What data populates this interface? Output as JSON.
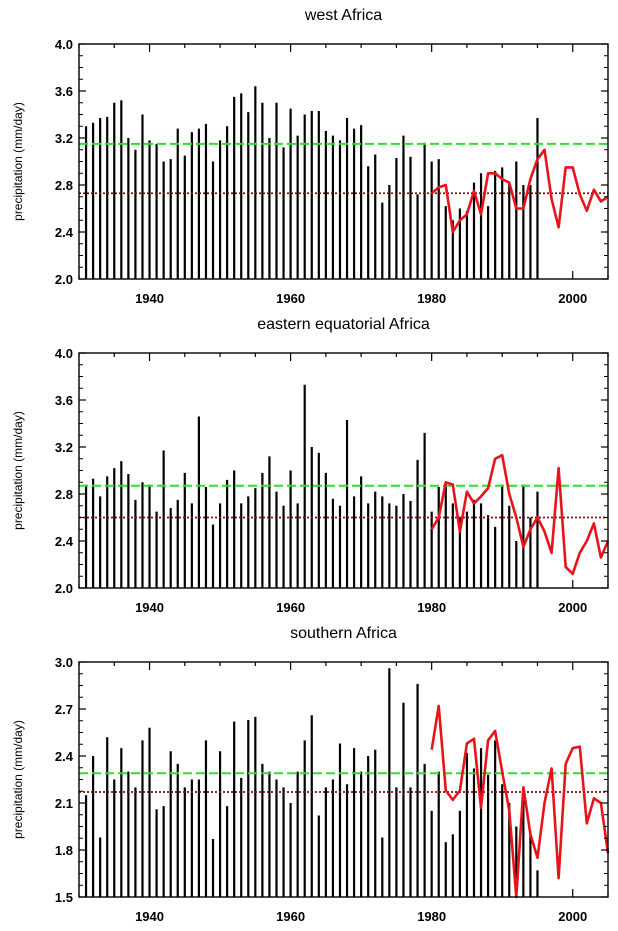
{
  "chart_data": [
    {
      "type": "bar",
      "title": "west Africa",
      "xlabel": "",
      "ylabel": "precipitation (mm/day)",
      "xlim": [
        1930,
        2005
      ],
      "ylim": [
        2.0,
        4.0
      ],
      "yticks": [
        2.0,
        2.4,
        2.8,
        3.2,
        3.6,
        4.0
      ],
      "ytick_labels": [
        "2.0",
        "2.4",
        "2.8",
        "3.2",
        "3.6",
        "4.0"
      ],
      "xticks": [
        1940,
        1960,
        1980,
        2000
      ],
      "xtick_labels": [
        "1940",
        "1960",
        "1980",
        "2000"
      ],
      "grid": false,
      "colors": {
        "bars": "#000000",
        "line": "#e8141b",
        "mean_long": "#2de02d",
        "mean_recent": "#7a0f0f"
      },
      "bars": {
        "x": [
          1931,
          1932,
          1933,
          1934,
          1935,
          1936,
          1937,
          1938,
          1939,
          1940,
          1941,
          1942,
          1943,
          1944,
          1945,
          1946,
          1947,
          1948,
          1949,
          1950,
          1951,
          1952,
          1953,
          1954,
          1955,
          1956,
          1957,
          1958,
          1959,
          1960,
          1961,
          1962,
          1963,
          1964,
          1965,
          1966,
          1967,
          1968,
          1969,
          1970,
          1971,
          1972,
          1973,
          1974,
          1975,
          1976,
          1977,
          1978,
          1979,
          1980,
          1981,
          1982,
          1983,
          1984,
          1985,
          1986,
          1987,
          1988,
          1989,
          1990,
          1991,
          1992,
          1993,
          1994,
          1995
        ],
        "values": [
          3.3,
          3.33,
          3.37,
          3.38,
          3.5,
          3.52,
          3.2,
          3.1,
          3.4,
          3.18,
          3.15,
          3.0,
          3.02,
          3.28,
          3.05,
          3.25,
          3.28,
          3.32,
          3.0,
          3.18,
          3.3,
          3.55,
          3.58,
          3.42,
          3.64,
          3.5,
          3.2,
          3.5,
          3.12,
          3.45,
          3.22,
          3.4,
          3.43,
          3.43,
          3.26,
          3.22,
          3.18,
          3.37,
          3.28,
          3.31,
          2.96,
          3.06,
          2.65,
          2.8,
          3.03,
          3.22,
          3.04,
          2.72,
          3.16,
          3.0,
          3.02,
          2.62,
          2.5,
          2.6,
          2.58,
          2.82,
          2.9,
          2.62,
          2.92,
          2.95,
          2.82,
          3.0,
          2.8,
          2.8,
          3.37
        ]
      },
      "series": [
        {
          "x": [
            1980,
            1981,
            1982,
            1983,
            1984,
            1985,
            1986,
            1987,
            1988,
            1989,
            1990,
            1991,
            1992,
            1993,
            1994,
            1995,
            1996,
            1997,
            1998,
            1999,
            2000,
            2001,
            2002,
            2003,
            2004,
            2005
          ],
          "values": [
            2.73,
            2.78,
            2.8,
            2.4,
            2.5,
            2.55,
            2.75,
            2.55,
            2.9,
            2.9,
            2.85,
            2.82,
            2.6,
            2.6,
            2.85,
            3.02,
            3.1,
            2.68,
            2.44,
            2.95,
            2.95,
            2.72,
            2.58,
            2.76,
            2.66,
            2.7
          ]
        }
      ],
      "hlines": [
        {
          "y": 3.15,
          "style": "dashed-green"
        },
        {
          "y": 2.73,
          "style": "dotted-darkred"
        }
      ]
    },
    {
      "type": "bar",
      "title": "eastern equatorial Africa",
      "xlabel": "",
      "ylabel": "precipitation (mm/day)",
      "xlim": [
        1930,
        2005
      ],
      "ylim": [
        2.0,
        4.0
      ],
      "yticks": [
        2.0,
        2.4,
        2.8,
        3.2,
        3.6,
        4.0
      ],
      "ytick_labels": [
        "2.0",
        "2.4",
        "2.8",
        "3.2",
        "3.6",
        "4.0"
      ],
      "xticks": [
        1940,
        1960,
        1980,
        2000
      ],
      "xtick_labels": [
        "1940",
        "1960",
        "1980",
        "2000"
      ],
      "grid": false,
      "colors": {
        "bars": "#000000",
        "line": "#e8141b",
        "mean_long": "#2de02d",
        "mean_recent": "#7a0f0f"
      },
      "bars": {
        "x": [
          1931,
          1932,
          1933,
          1934,
          1935,
          1936,
          1937,
          1938,
          1939,
          1940,
          1941,
          1942,
          1943,
          1944,
          1945,
          1946,
          1947,
          1948,
          1949,
          1950,
          1951,
          1952,
          1953,
          1954,
          1955,
          1956,
          1957,
          1958,
          1959,
          1960,
          1961,
          1962,
          1963,
          1964,
          1965,
          1966,
          1967,
          1968,
          1969,
          1970,
          1971,
          1972,
          1973,
          1974,
          1975,
          1976,
          1977,
          1978,
          1979,
          1980,
          1981,
          1982,
          1983,
          1984,
          1985,
          1986,
          1987,
          1988,
          1989,
          1990,
          1991,
          1992,
          1993,
          1994,
          1995
        ],
        "values": [
          2.88,
          2.93,
          2.78,
          2.95,
          3.02,
          3.08,
          2.97,
          2.75,
          2.9,
          2.88,
          2.65,
          3.17,
          2.68,
          2.75,
          2.98,
          2.72,
          3.46,
          2.86,
          2.54,
          2.72,
          2.92,
          3.0,
          2.72,
          2.78,
          2.85,
          2.98,
          3.12,
          2.82,
          2.7,
          3.0,
          2.72,
          3.73,
          3.2,
          3.15,
          2.98,
          2.76,
          2.7,
          3.43,
          2.78,
          2.95,
          2.72,
          2.82,
          2.78,
          2.72,
          2.7,
          2.8,
          2.74,
          3.09,
          3.32,
          2.65,
          2.86,
          2.9,
          2.72,
          2.6,
          2.65,
          2.75,
          2.72,
          2.62,
          2.52,
          2.88,
          2.7,
          2.4,
          2.88,
          2.6,
          2.82
        ]
      },
      "series": [
        {
          "x": [
            1980,
            1981,
            1982,
            1983,
            1984,
            1985,
            1986,
            1987,
            1988,
            1989,
            1990,
            1991,
            1992,
            1993,
            1994,
            1995,
            1996,
            1997,
            1998,
            1999,
            2000,
            2001,
            2002,
            2003,
            2004,
            2005
          ],
          "values": [
            2.5,
            2.6,
            2.9,
            2.88,
            2.48,
            2.82,
            2.72,
            2.78,
            2.85,
            3.1,
            3.13,
            2.8,
            2.6,
            2.35,
            2.5,
            2.6,
            2.48,
            2.3,
            3.02,
            2.18,
            2.12,
            2.3,
            2.4,
            2.55,
            2.26,
            2.4
          ]
        }
      ],
      "hlines": [
        {
          "y": 2.87,
          "style": "dashed-green"
        },
        {
          "y": 2.6,
          "style": "dotted-darkred"
        }
      ]
    },
    {
      "type": "bar",
      "title": "southern Africa",
      "xlabel": "",
      "ylabel": "precipitation (mm/day)",
      "xlim": [
        1930,
        2005
      ],
      "ylim": [
        1.5,
        3.0
      ],
      "yticks": [
        1.5,
        1.8,
        2.1,
        2.4,
        2.7,
        3.0
      ],
      "ytick_labels": [
        "1.5",
        "1.8",
        "2.1",
        "2.4",
        "2.7",
        "3.0"
      ],
      "xticks": [
        1940,
        1960,
        1980,
        2000
      ],
      "xtick_labels": [
        "1940",
        "1960",
        "1980",
        "2000"
      ],
      "grid": false,
      "colors": {
        "bars": "#000000",
        "line": "#e8141b",
        "mean_long": "#2de02d",
        "mean_recent": "#7a0f0f"
      },
      "bars": {
        "x": [
          1931,
          1932,
          1933,
          1934,
          1935,
          1936,
          1937,
          1938,
          1939,
          1940,
          1941,
          1942,
          1943,
          1944,
          1945,
          1946,
          1947,
          1948,
          1949,
          1950,
          1951,
          1952,
          1953,
          1954,
          1955,
          1956,
          1957,
          1958,
          1959,
          1960,
          1961,
          1962,
          1963,
          1964,
          1965,
          1966,
          1967,
          1968,
          1969,
          1970,
          1971,
          1972,
          1973,
          1974,
          1975,
          1976,
          1977,
          1978,
          1979,
          1980,
          1981,
          1982,
          1983,
          1984,
          1985,
          1986,
          1987,
          1988,
          1989,
          1990,
          1991,
          1992,
          1993,
          1994,
          1995
        ],
        "values": [
          2.15,
          2.4,
          1.88,
          2.52,
          2.25,
          2.45,
          2.3,
          2.2,
          2.5,
          2.58,
          2.06,
          2.08,
          2.43,
          2.35,
          2.2,
          2.25,
          2.25,
          2.5,
          1.87,
          2.43,
          2.08,
          2.62,
          2.26,
          2.63,
          2.65,
          2.35,
          2.3,
          2.25,
          2.2,
          2.1,
          2.3,
          2.5,
          2.66,
          2.02,
          2.2,
          2.25,
          2.48,
          2.22,
          2.45,
          2.3,
          2.4,
          2.44,
          1.88,
          2.96,
          2.2,
          2.74,
          2.2,
          2.86,
          2.35,
          2.05,
          2.3,
          1.85,
          1.9,
          2.05,
          2.42,
          2.32,
          2.45,
          2.28,
          2.5,
          2.22,
          2.1,
          1.95,
          2.12,
          1.92,
          1.67
        ]
      },
      "series": [
        {
          "x": [
            1980,
            1981,
            1982,
            1983,
            1984,
            1985,
            1986,
            1987,
            1988,
            1989,
            1990,
            1991,
            1992,
            1993,
            1994,
            1995,
            1996,
            1997,
            1998,
            1999,
            2000,
            2001,
            2002,
            2003,
            2004,
            2005
          ],
          "values": [
            2.44,
            2.72,
            2.18,
            2.12,
            2.18,
            2.48,
            2.51,
            2.07,
            2.5,
            2.56,
            2.3,
            2.05,
            1.5,
            2.2,
            1.9,
            1.75,
            2.1,
            2.32,
            1.62,
            2.35,
            2.45,
            2.46,
            1.97,
            2.13,
            2.1,
            1.78
          ]
        }
      ],
      "hlines": [
        {
          "y": 2.29,
          "style": "dashed-green"
        },
        {
          "y": 2.17,
          "style": "dotted-darkred"
        }
      ]
    }
  ]
}
